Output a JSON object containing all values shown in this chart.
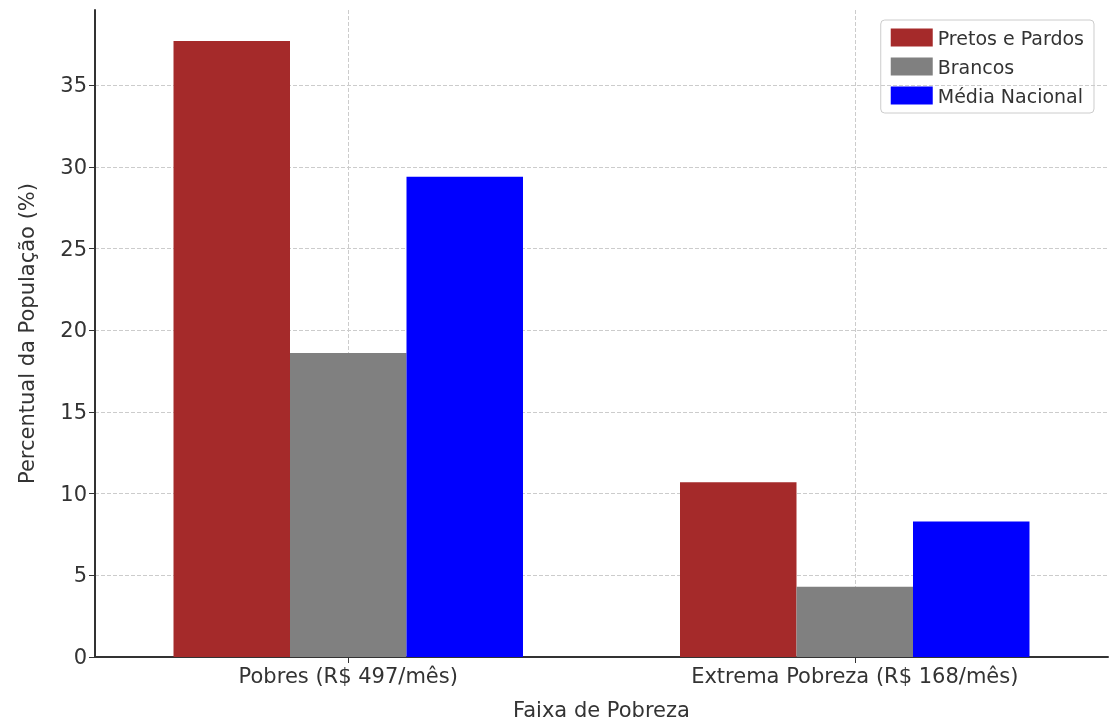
{
  "chart_data": {
    "type": "bar",
    "xlabel": "Faixa de Pobreza",
    "ylabel": "Percentual da População (%)",
    "categories": [
      "Pobres (R$ 497/mês)",
      "Extrema Pobreza (R$ 168/mês)"
    ],
    "series": [
      {
        "name": "Pretos e Pardos",
        "color": "#a52a2a",
        "values": [
          37.7,
          10.7
        ]
      },
      {
        "name": "Brancos",
        "color": "#808080",
        "values": [
          18.6,
          4.3
        ]
      },
      {
        "name": "Média Nacional",
        "color": "#0000ff",
        "values": [
          29.4,
          8.3
        ]
      }
    ],
    "ylim": [
      0,
      39.6
    ],
    "yticks": [
      0,
      5,
      10,
      15,
      20,
      25,
      30,
      35
    ],
    "grid": true,
    "legend": "top right"
  }
}
